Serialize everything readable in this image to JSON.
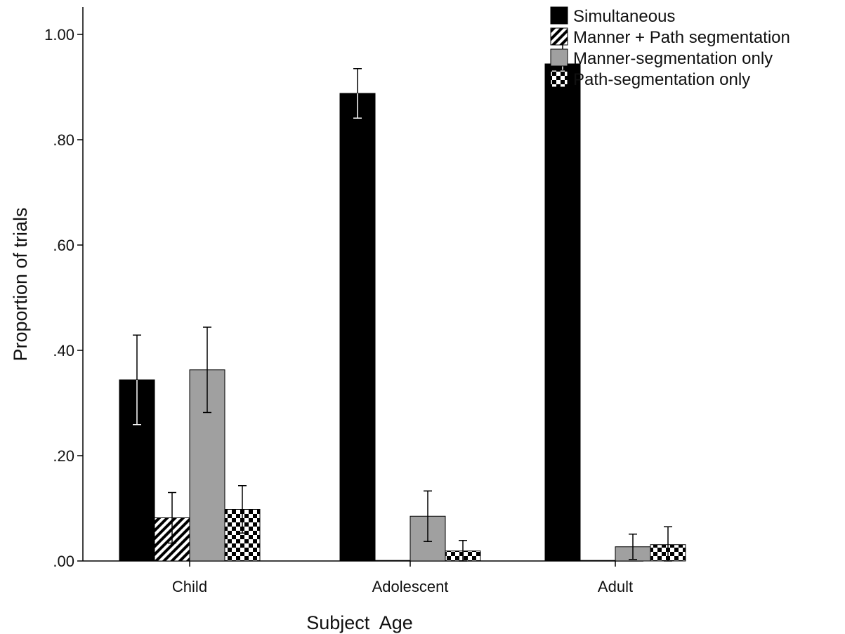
{
  "chart_data": {
    "type": "bar",
    "title": "",
    "xlabel": "Subject  Age",
    "ylabel": "Proportion of trials",
    "categories": [
      "Child",
      "Adolescent",
      "Adult"
    ],
    "ylim": [
      0,
      1.0
    ],
    "yticks": [
      ".00",
      ".20",
      ".40",
      ".60",
      ".80",
      "1.00"
    ],
    "ytick_values": [
      0,
      0.2,
      0.4,
      0.6,
      0.8,
      1.0
    ],
    "grid": false,
    "legend_position": "top-right",
    "series": [
      {
        "name": "Simultaneous",
        "values": [
          0.344,
          0.888,
          0.944
        ],
        "error": [
          0.085,
          0.047,
          0.04
        ],
        "pattern": "solid-black",
        "color": "#000000"
      },
      {
        "name": "Manner + Path segmentation",
        "values": [
          0.082,
          0.0,
          0.0
        ],
        "error": [
          0.048,
          0.0,
          0.0
        ],
        "pattern": "diagonal-hatch",
        "color": "#000000"
      },
      {
        "name": "Manner-segmentation only",
        "values": [
          0.363,
          0.085,
          0.027
        ],
        "error": [
          0.081,
          0.048,
          0.024
        ],
        "pattern": "solid-gray",
        "color": "#a0a0a0"
      },
      {
        "name": "Path-segmentation only",
        "values": [
          0.098,
          0.019,
          0.031
        ],
        "error": [
          0.045,
          0.02,
          0.034
        ],
        "pattern": "checkerboard",
        "color": "#000000"
      }
    ]
  }
}
